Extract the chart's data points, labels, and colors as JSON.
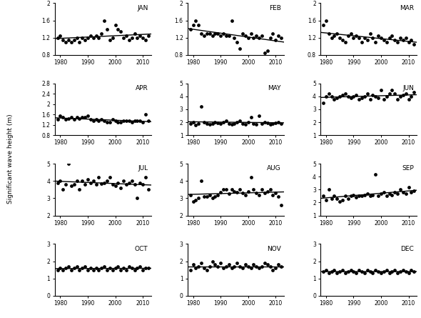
{
  "months": [
    "JAN",
    "FEB",
    "MAR",
    "APR",
    "MAY",
    "JUN",
    "JUL",
    "AUG",
    "SEP",
    "OCT",
    "NOV",
    "DEC"
  ],
  "years": [
    1979,
    1980,
    1981,
    1982,
    1983,
    1984,
    1985,
    1986,
    1987,
    1988,
    1989,
    1990,
    1991,
    1992,
    1993,
    1994,
    1995,
    1996,
    1997,
    1998,
    1999,
    2000,
    2001,
    2002,
    2003,
    2004,
    2005,
    2006,
    2007,
    2008,
    2009,
    2010,
    2011,
    2012
  ],
  "data": {
    "JAN": [
      1.2,
      1.25,
      1.15,
      1.1,
      1.15,
      1.1,
      1.15,
      1.2,
      1.1,
      1.2,
      1.15,
      1.2,
      1.25,
      1.2,
      1.25,
      1.2,
      1.3,
      1.6,
      1.4,
      1.15,
      1.2,
      1.5,
      1.4,
      1.35,
      1.2,
      1.25,
      1.15,
      1.2,
      1.3,
      1.2,
      1.25,
      1.2,
      1.15,
      1.25
    ],
    "FEB": [
      1.4,
      1.5,
      1.6,
      1.5,
      1.3,
      1.25,
      1.3,
      1.3,
      1.25,
      1.3,
      1.3,
      1.25,
      1.3,
      1.25,
      1.25,
      1.6,
      1.2,
      1.1,
      0.95,
      1.3,
      1.25,
      1.2,
      1.3,
      1.2,
      1.25,
      1.2,
      1.25,
      0.85,
      0.9,
      1.2,
      1.3,
      1.15,
      1.25,
      1.2
    ],
    "MAR": [
      1.5,
      1.6,
      1.3,
      1.2,
      1.25,
      1.3,
      1.2,
      1.15,
      1.1,
      1.25,
      1.3,
      1.2,
      1.25,
      1.2,
      1.1,
      1.2,
      1.15,
      1.3,
      1.2,
      1.1,
      1.25,
      1.2,
      1.15,
      1.1,
      1.2,
      1.25,
      1.15,
      1.1,
      1.2,
      1.15,
      1.2,
      1.1,
      1.15,
      1.05
    ],
    "APR": [
      1.4,
      1.55,
      1.5,
      1.4,
      1.45,
      1.5,
      1.4,
      1.5,
      1.45,
      1.5,
      1.5,
      1.55,
      1.4,
      1.35,
      1.4,
      1.35,
      1.4,
      1.35,
      1.3,
      1.3,
      1.4,
      1.35,
      1.3,
      1.3,
      1.35,
      1.35,
      1.35,
      1.3,
      1.35,
      1.35,
      1.35,
      1.3,
      1.6,
      1.35
    ],
    "MAY": [
      1.9,
      2.0,
      1.8,
      1.9,
      3.2,
      2.0,
      1.9,
      1.85,
      1.9,
      2.0,
      1.95,
      1.9,
      2.0,
      2.1,
      1.9,
      1.85,
      1.9,
      2.0,
      2.1,
      1.9,
      1.85,
      2.0,
      2.4,
      1.9,
      1.85,
      2.5,
      1.9,
      2.0,
      1.95,
      1.85,
      1.9,
      1.95,
      2.0,
      1.9
    ],
    "JUN": [
      3.5,
      4.0,
      4.2,
      4.0,
      3.8,
      3.9,
      4.0,
      4.1,
      4.2,
      4.0,
      3.9,
      4.0,
      4.1,
      3.8,
      3.9,
      4.0,
      4.2,
      3.8,
      4.1,
      4.0,
      3.9,
      4.5,
      3.8,
      4.0,
      4.2,
      4.5,
      4.2,
      3.8,
      4.0,
      4.1,
      4.2,
      3.8,
      4.0,
      4.3
    ],
    "JUL": [
      3.9,
      4.0,
      3.5,
      3.8,
      5.0,
      3.7,
      3.8,
      4.0,
      3.5,
      4.0,
      3.8,
      4.1,
      3.9,
      4.0,
      3.8,
      4.2,
      3.85,
      3.9,
      4.0,
      4.2,
      3.8,
      3.7,
      3.9,
      3.6,
      4.0,
      3.8,
      3.9,
      4.0,
      3.8,
      3.0,
      3.9,
      3.8,
      4.2,
      3.5
    ],
    "AUG": [
      3.2,
      2.8,
      2.9,
      3.0,
      4.0,
      3.1,
      3.1,
      3.2,
      3.0,
      3.1,
      3.2,
      3.35,
      3.5,
      3.5,
      3.25,
      3.5,
      3.4,
      3.35,
      3.5,
      3.3,
      3.2,
      3.4,
      4.2,
      3.5,
      3.3,
      3.2,
      3.5,
      3.3,
      3.4,
      3.5,
      3.2,
      3.3,
      3.1,
      2.6
    ],
    "SEP": [
      2.5,
      2.2,
      3.0,
      2.3,
      2.5,
      2.3,
      2.1,
      2.2,
      2.5,
      2.3,
      2.5,
      2.6,
      2.4,
      2.5,
      2.5,
      2.6,
      2.7,
      2.5,
      2.6,
      4.2,
      2.5,
      2.7,
      2.8,
      2.5,
      2.7,
      2.6,
      2.8,
      2.7,
      3.0,
      2.8,
      2.7,
      3.2,
      2.8,
      2.9
    ],
    "OCT": [
      1.5,
      1.6,
      1.5,
      1.6,
      1.7,
      1.5,
      1.6,
      1.7,
      1.5,
      1.6,
      1.7,
      1.5,
      1.6,
      1.5,
      1.6,
      1.5,
      1.6,
      1.7,
      1.5,
      1.6,
      1.5,
      1.6,
      1.7,
      1.5,
      1.6,
      1.5,
      1.7,
      1.6,
      1.5,
      1.6,
      1.7,
      1.5,
      1.6,
      1.6
    ],
    "NOV": [
      1.5,
      1.8,
      1.6,
      1.7,
      1.9,
      1.6,
      1.5,
      1.7,
      2.0,
      1.8,
      1.7,
      1.9,
      1.6,
      1.7,
      1.8,
      1.6,
      1.7,
      1.9,
      1.7,
      1.6,
      1.8,
      1.7,
      1.6,
      1.8,
      1.7,
      1.6,
      1.7,
      1.9,
      1.8,
      1.7,
      1.5,
      1.6,
      1.8,
      1.7
    ],
    "DEC": [
      1.4,
      1.5,
      1.3,
      1.4,
      1.5,
      1.3,
      1.4,
      1.5,
      1.3,
      1.4,
      1.5,
      1.4,
      1.3,
      1.5,
      1.4,
      1.3,
      1.5,
      1.4,
      1.3,
      1.5,
      1.4,
      1.3,
      1.4,
      1.5,
      1.3,
      1.4,
      1.5,
      1.3,
      1.4,
      1.5,
      1.4,
      1.3,
      1.5,
      1.4
    ]
  },
  "ylims": {
    "JAN": [
      0.8,
      2.0
    ],
    "FEB": [
      0.8,
      2.0
    ],
    "MAR": [
      0.8,
      2.0
    ],
    "APR": [
      0.8,
      2.8
    ],
    "MAY": [
      1.0,
      5.0
    ],
    "JUN": [
      1.0,
      5.0
    ],
    "JUL": [
      2.0,
      5.0
    ],
    "AUG": [
      2.0,
      5.0
    ],
    "SEP": [
      1.0,
      5.0
    ],
    "OCT": [
      0.0,
      3.0
    ],
    "NOV": [
      0.0,
      3.0
    ],
    "DEC": [
      0.0,
      3.0
    ]
  },
  "yticks": {
    "JAN": [
      0.8,
      1.2,
      1.6,
      2.0
    ],
    "FEB": [
      0.8,
      1.2,
      1.6,
      2.0
    ],
    "MAR": [
      0.8,
      1.2,
      1.6,
      2.0
    ],
    "APR": [
      0.8,
      1.2,
      1.6,
      2.0,
      2.4,
      2.8
    ],
    "MAY": [
      1,
      2,
      3,
      4,
      5
    ],
    "JUN": [
      1,
      2,
      3,
      4,
      5
    ],
    "JUL": [
      2,
      3,
      4,
      5
    ],
    "AUG": [
      2,
      3,
      4,
      5
    ],
    "SEP": [
      1,
      2,
      3,
      4,
      5
    ],
    "OCT": [
      0,
      1,
      2,
      3
    ],
    "NOV": [
      0,
      1,
      2,
      3
    ],
    "DEC": [
      0,
      1,
      2,
      3
    ]
  },
  "xticks": [
    1980,
    1990,
    2000,
    2010
  ],
  "xlim": [
    1978,
    2013
  ],
  "ylabel": "Significant wave height (m)",
  "marker_color": "black",
  "marker_size": 12,
  "line_color": "black",
  "line_width": 1.0,
  "label_fontsize": 6.5,
  "tick_fontsize": 5.5,
  "ylabel_fontsize": 6.5
}
